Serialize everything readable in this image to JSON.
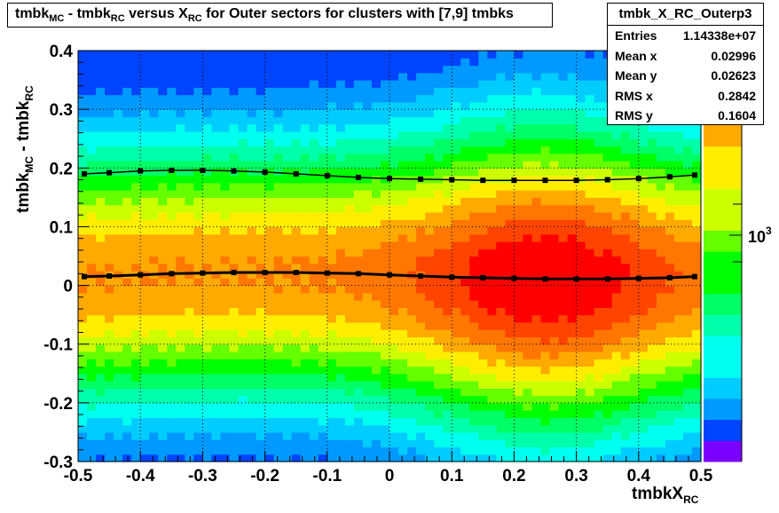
{
  "title": {
    "p1": "tmbk",
    "s1": "MC",
    "p2": " - tmbk",
    "s2": "RC",
    "p3": " versus X",
    "s3": "RC",
    "p4": " for Outer sectors for clusters with [7,9] tmbks"
  },
  "stats": {
    "name": "tmbk_X_RC_Outerp3",
    "rows": [
      {
        "label": "Entries",
        "value": "1.14338e+07"
      },
      {
        "label": "Mean x",
        "value": "0.02996"
      },
      {
        "label": "Mean y",
        "value": "0.02623"
      },
      {
        "label": "RMS x",
        "value": "0.2842"
      },
      {
        "label": "RMS y",
        "value": "0.1604"
      }
    ]
  },
  "axis_titles": {
    "y": {
      "p1": "tmbk",
      "s1": "MC",
      "p2": " - tmbk",
      "s2": "RC"
    },
    "x": {
      "p1": "tmbkX",
      "s1": "RC"
    }
  },
  "palette_label": {
    "base": "10",
    "exp": "3"
  },
  "colors": {
    "red": "#ff0000",
    "orange_red": "#ff4400",
    "orange": "#ff7700",
    "yellow_orange": "#ffaa00",
    "yellow": "#ffee00",
    "yellow_green": "#ccff00",
    "light_green": "#66ff00",
    "green": "#00ff00",
    "sea_green": "#00ff66",
    "aqua_green": "#00ffaa",
    "cyan": "#00ffee",
    "sky": "#00ccff",
    "blue_light": "#0099ff",
    "blue": "#0044ff",
    "violet": "#7a00ff"
  },
  "chart_data": {
    "type": "heatmap",
    "title": "tmbk_MC - tmbk_RC versus X_RC for Outer sectors for clusters with [7,9] tmbks",
    "xlabel": "tmbkX_RC",
    "ylabel": "tmbk_MC - tmbk_RC",
    "xlim": [
      -0.5,
      0.5
    ],
    "ylim": [
      -0.3,
      0.4
    ],
    "x_ticks": [
      "-0.5",
      "-0.4",
      "-0.3",
      "-0.2",
      "-0.1",
      "0",
      "0.1",
      "0.2",
      "0.3",
      "0.4",
      "0.5"
    ],
    "y_ticks": [
      "-0.3",
      "-0.2",
      "-0.1",
      "0",
      "0.1",
      "0.2",
      "0.3",
      "0.4"
    ],
    "grid": true,
    "color_scale": "log (z)",
    "series": [
      {
        "name": "mean",
        "x": [
          -0.49,
          -0.45,
          -0.4,
          -0.35,
          -0.3,
          -0.25,
          -0.2,
          -0.15,
          -0.1,
          -0.05,
          0,
          0.05,
          0.1,
          0.15,
          0.2,
          0.25,
          0.3,
          0.35,
          0.4,
          0.45,
          0.49
        ],
        "y": [
          0.015,
          0.016,
          0.018,
          0.02,
          0.021,
          0.022,
          0.022,
          0.022,
          0.021,
          0.02,
          0.018,
          0.016,
          0.014,
          0.013,
          0.012,
          0.011,
          0.011,
          0.011,
          0.012,
          0.013,
          0.015
        ]
      },
      {
        "name": "rms",
        "x": [
          -0.49,
          -0.45,
          -0.4,
          -0.35,
          -0.3,
          -0.25,
          -0.2,
          -0.15,
          -0.1,
          -0.05,
          0,
          0.05,
          0.1,
          0.15,
          0.2,
          0.25,
          0.3,
          0.35,
          0.4,
          0.45,
          0.49
        ],
        "y": [
          0.19,
          0.192,
          0.195,
          0.196,
          0.196,
          0.195,
          0.193,
          0.19,
          0.187,
          0.184,
          0.182,
          0.181,
          0.18,
          0.179,
          0.179,
          0.179,
          0.179,
          0.18,
          0.182,
          0.185,
          0.188
        ]
      }
    ]
  }
}
